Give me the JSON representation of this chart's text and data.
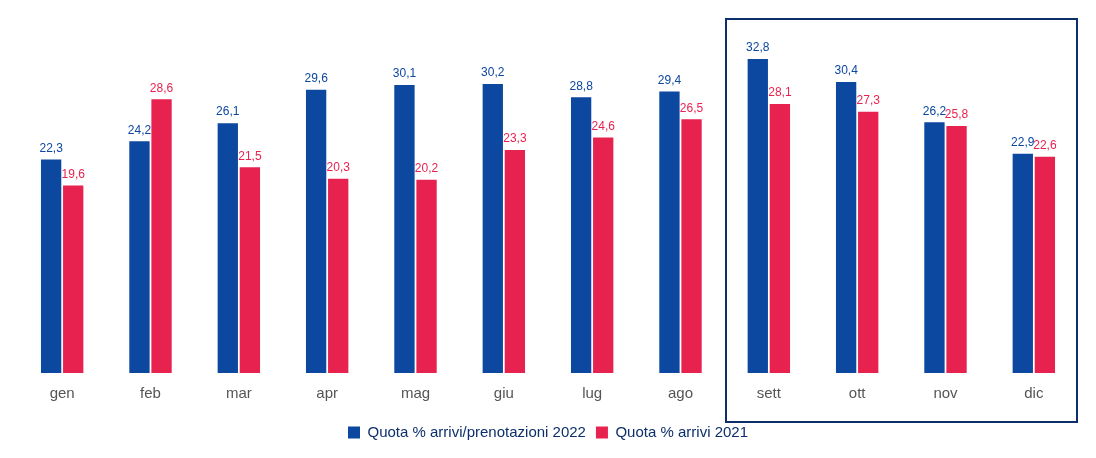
{
  "chart_data": {
    "type": "bar",
    "categories": [
      "gen",
      "feb",
      "mar",
      "apr",
      "mag",
      "giu",
      "lug",
      "ago",
      "sett",
      "ott",
      "nov",
      "dic"
    ],
    "series": [
      {
        "name": "Quota % arrivi/prenotazioni 2022",
        "color": "#0c47a0",
        "values": [
          22.3,
          24.2,
          26.1,
          29.6,
          30.1,
          30.2,
          28.8,
          29.4,
          32.8,
          30.4,
          26.2,
          22.9
        ],
        "value_labels": [
          "22,3",
          "24,2",
          "26,1",
          "29,6",
          "30,1",
          "30,2",
          "28,8",
          "29,4",
          "32,8",
          "30,4",
          "26,2",
          "22,9"
        ]
      },
      {
        "name": "Quota % arrivi 2021",
        "color": "#e8224f",
        "values": [
          19.6,
          28.6,
          21.5,
          20.3,
          20.2,
          23.3,
          24.6,
          26.5,
          28.1,
          27.3,
          25.8,
          22.6
        ],
        "value_labels": [
          "19,6",
          "28,6",
          "21,5",
          "20,3",
          "20,2",
          "23,3",
          "24,6",
          "26,5",
          "28,1",
          "27,3",
          "25,8",
          "22,6"
        ]
      }
    ],
    "legend": "bottom",
    "grid": false
  }
}
